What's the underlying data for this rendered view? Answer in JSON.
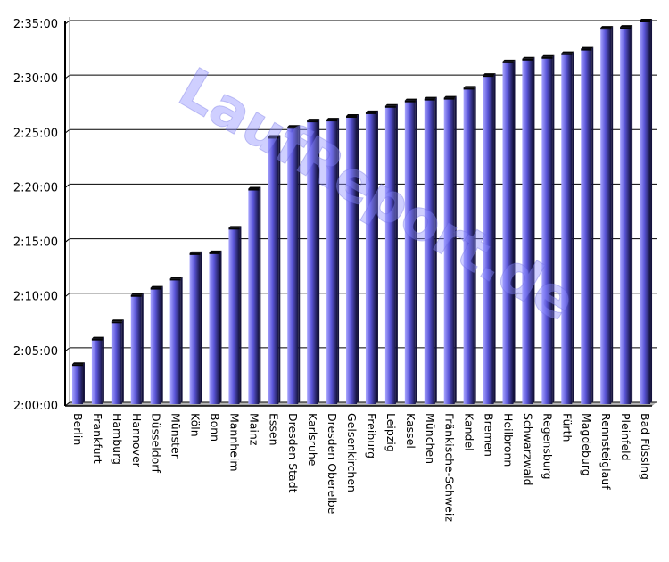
{
  "chart_data": {
    "type": "bar",
    "watermark": "LaufReport.de",
    "ylim": [
      "2:00:00",
      "2:35:00"
    ],
    "yticks": [
      "2:00:00",
      "2:05:00",
      "2:10:00",
      "2:15:00",
      "2:20:00",
      "2:25:00",
      "2:30:00",
      "2:35:00"
    ],
    "grid": true,
    "colors": {
      "bar_light": "#a9a6ff",
      "bar_mid": "#5a55d8",
      "bar_dark": "#14123c",
      "bar_top": "#050505"
    },
    "categories": [
      "Berlin",
      "Frankfurt",
      "Hamburg",
      "Hannover",
      "Düsseldorf",
      "Münster",
      "Köln",
      "Bonn",
      "Mannheim",
      "Mainz",
      "Essen",
      "Dresden Stadt",
      "Karlsruhe",
      "Dresden Oberelbe",
      "Gelsenkirchen",
      "Freiburg",
      "Leipzig",
      "Kassel",
      "München",
      "Fränkische-Schweiz",
      "Kandel",
      "Bremen",
      "Heilbronn",
      "Schwarzwald",
      "Regensburg",
      "Fürth",
      "Magdeburg",
      "Rennsteiglauf",
      "Pleinfeld",
      "Bad Füssing"
    ],
    "values": [
      "2:03:30",
      "2:05:50",
      "2:07:25",
      "2:09:50",
      "2:10:30",
      "2:11:20",
      "2:13:40",
      "2:13:45",
      "2:16:00",
      "2:19:35",
      "2:24:20",
      "2:25:15",
      "2:25:50",
      "2:25:55",
      "2:26:15",
      "2:26:35",
      "2:27:10",
      "2:27:40",
      "2:27:50",
      "2:27:55",
      "2:28:50",
      "2:30:00",
      "2:31:15",
      "2:31:30",
      "2:31:40",
      "2:32:00",
      "2:32:25",
      "2:34:20",
      "2:34:25",
      "2:35:00"
    ]
  }
}
